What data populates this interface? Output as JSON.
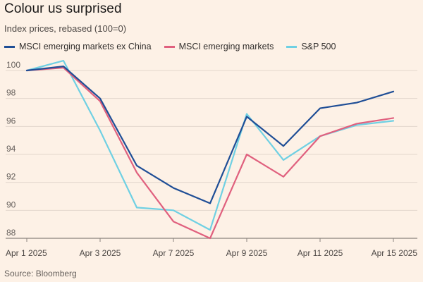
{
  "chart_data": {
    "type": "line",
    "title": "Colour us surprised",
    "subtitle": "Index prices, rebased (100=0)",
    "source": "Source: Bloomberg",
    "x": [
      "Apr 1 2025",
      "Apr 2 2025",
      "Apr 3 2025",
      "Apr 4 2025",
      "Apr 7 2025",
      "Apr 8 2025",
      "Apr 9 2025",
      "Apr 10 2025",
      "Apr 11 2025",
      "Apr 14 2025",
      "Apr 15 2025"
    ],
    "xticks": [
      {
        "index": 0,
        "label": "Apr 1 2025"
      },
      {
        "index": 2,
        "label": "Apr 3 2025"
      },
      {
        "index": 4,
        "label": "Apr 7 2025"
      },
      {
        "index": 6,
        "label": "Apr 9 2025"
      },
      {
        "index": 8,
        "label": "Apr 11 2025"
      },
      {
        "index": 10,
        "label": "Apr 15 2025"
      }
    ],
    "ylim": [
      88,
      100
    ],
    "yticks": [
      88,
      90,
      92,
      94,
      96,
      98,
      100
    ],
    "grid": true,
    "series": [
      {
        "name": "MSCI emerging markets ex China",
        "color": "#1f4e96",
        "values": [
          100.0,
          100.3,
          98.0,
          93.2,
          91.6,
          90.5,
          96.7,
          94.6,
          97.3,
          97.7,
          98.5
        ]
      },
      {
        "name": "MSCI emerging markets",
        "color": "#e0607e",
        "values": [
          100.0,
          100.2,
          97.8,
          92.7,
          89.2,
          88.0,
          94.0,
          92.4,
          95.3,
          96.2,
          96.6
        ]
      },
      {
        "name": "S&P 500",
        "color": "#6fd0e3",
        "values": [
          100.0,
          100.7,
          95.7,
          90.2,
          90.0,
          88.6,
          96.9,
          93.6,
          95.3,
          96.1,
          96.4
        ]
      }
    ]
  }
}
